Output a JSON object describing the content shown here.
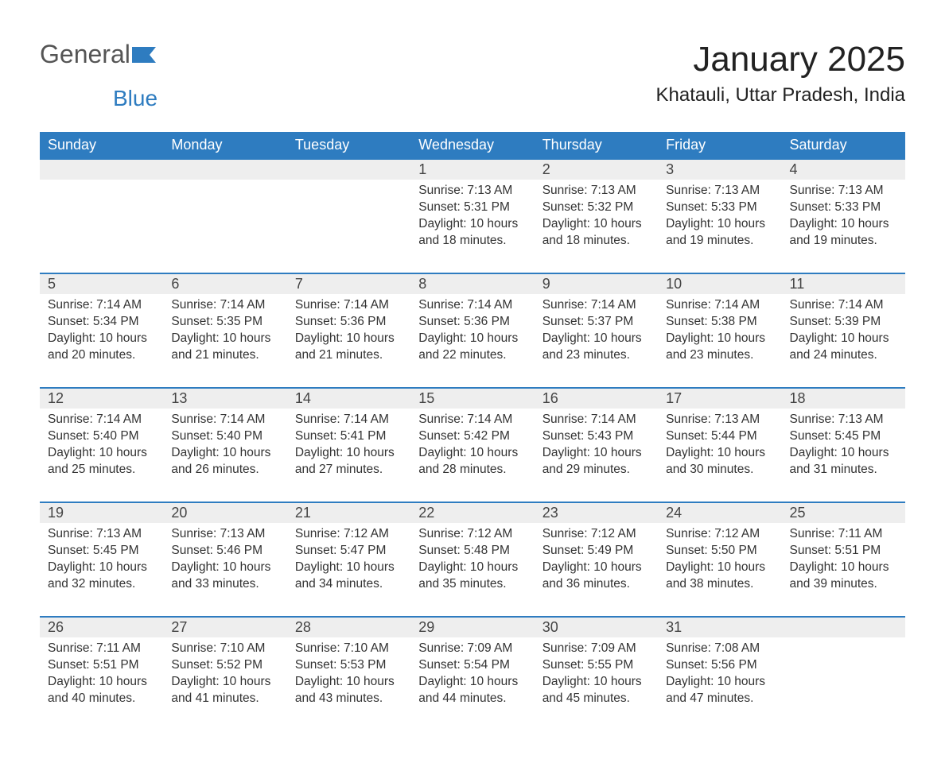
{
  "logo": {
    "text1": "General",
    "text2": "Blue"
  },
  "title": "January 2025",
  "location": "Khatauli, Uttar Pradesh, India",
  "colors": {
    "header_bg": "#2e7cc0",
    "header_text": "#ffffff",
    "daynum_bg": "#eeeeee",
    "border": "#2e7cc0",
    "body_text": "#333333",
    "page_bg": "#ffffff"
  },
  "weekdays": [
    "Sunday",
    "Monday",
    "Tuesday",
    "Wednesday",
    "Thursday",
    "Friday",
    "Saturday"
  ],
  "weeks": [
    [
      null,
      null,
      null,
      {
        "day": "1",
        "sunrise": "7:13 AM",
        "sunset": "5:31 PM",
        "daylight": "10 hours and 18 minutes."
      },
      {
        "day": "2",
        "sunrise": "7:13 AM",
        "sunset": "5:32 PM",
        "daylight": "10 hours and 18 minutes."
      },
      {
        "day": "3",
        "sunrise": "7:13 AM",
        "sunset": "5:33 PM",
        "daylight": "10 hours and 19 minutes."
      },
      {
        "day": "4",
        "sunrise": "7:13 AM",
        "sunset": "5:33 PM",
        "daylight": "10 hours and 19 minutes."
      }
    ],
    [
      {
        "day": "5",
        "sunrise": "7:14 AM",
        "sunset": "5:34 PM",
        "daylight": "10 hours and 20 minutes."
      },
      {
        "day": "6",
        "sunrise": "7:14 AM",
        "sunset": "5:35 PM",
        "daylight": "10 hours and 21 minutes."
      },
      {
        "day": "7",
        "sunrise": "7:14 AM",
        "sunset": "5:36 PM",
        "daylight": "10 hours and 21 minutes."
      },
      {
        "day": "8",
        "sunrise": "7:14 AM",
        "sunset": "5:36 PM",
        "daylight": "10 hours and 22 minutes."
      },
      {
        "day": "9",
        "sunrise": "7:14 AM",
        "sunset": "5:37 PM",
        "daylight": "10 hours and 23 minutes."
      },
      {
        "day": "10",
        "sunrise": "7:14 AM",
        "sunset": "5:38 PM",
        "daylight": "10 hours and 23 minutes."
      },
      {
        "day": "11",
        "sunrise": "7:14 AM",
        "sunset": "5:39 PM",
        "daylight": "10 hours and 24 minutes."
      }
    ],
    [
      {
        "day": "12",
        "sunrise": "7:14 AM",
        "sunset": "5:40 PM",
        "daylight": "10 hours and 25 minutes."
      },
      {
        "day": "13",
        "sunrise": "7:14 AM",
        "sunset": "5:40 PM",
        "daylight": "10 hours and 26 minutes."
      },
      {
        "day": "14",
        "sunrise": "7:14 AM",
        "sunset": "5:41 PM",
        "daylight": "10 hours and 27 minutes."
      },
      {
        "day": "15",
        "sunrise": "7:14 AM",
        "sunset": "5:42 PM",
        "daylight": "10 hours and 28 minutes."
      },
      {
        "day": "16",
        "sunrise": "7:14 AM",
        "sunset": "5:43 PM",
        "daylight": "10 hours and 29 minutes."
      },
      {
        "day": "17",
        "sunrise": "7:13 AM",
        "sunset": "5:44 PM",
        "daylight": "10 hours and 30 minutes."
      },
      {
        "day": "18",
        "sunrise": "7:13 AM",
        "sunset": "5:45 PM",
        "daylight": "10 hours and 31 minutes."
      }
    ],
    [
      {
        "day": "19",
        "sunrise": "7:13 AM",
        "sunset": "5:45 PM",
        "daylight": "10 hours and 32 minutes."
      },
      {
        "day": "20",
        "sunrise": "7:13 AM",
        "sunset": "5:46 PM",
        "daylight": "10 hours and 33 minutes."
      },
      {
        "day": "21",
        "sunrise": "7:12 AM",
        "sunset": "5:47 PM",
        "daylight": "10 hours and 34 minutes."
      },
      {
        "day": "22",
        "sunrise": "7:12 AM",
        "sunset": "5:48 PM",
        "daylight": "10 hours and 35 minutes."
      },
      {
        "day": "23",
        "sunrise": "7:12 AM",
        "sunset": "5:49 PM",
        "daylight": "10 hours and 36 minutes."
      },
      {
        "day": "24",
        "sunrise": "7:12 AM",
        "sunset": "5:50 PM",
        "daylight": "10 hours and 38 minutes."
      },
      {
        "day": "25",
        "sunrise": "7:11 AM",
        "sunset": "5:51 PM",
        "daylight": "10 hours and 39 minutes."
      }
    ],
    [
      {
        "day": "26",
        "sunrise": "7:11 AM",
        "sunset": "5:51 PM",
        "daylight": "10 hours and 40 minutes."
      },
      {
        "day": "27",
        "sunrise": "7:10 AM",
        "sunset": "5:52 PM",
        "daylight": "10 hours and 41 minutes."
      },
      {
        "day": "28",
        "sunrise": "7:10 AM",
        "sunset": "5:53 PM",
        "daylight": "10 hours and 43 minutes."
      },
      {
        "day": "29",
        "sunrise": "7:09 AM",
        "sunset": "5:54 PM",
        "daylight": "10 hours and 44 minutes."
      },
      {
        "day": "30",
        "sunrise": "7:09 AM",
        "sunset": "5:55 PM",
        "daylight": "10 hours and 45 minutes."
      },
      {
        "day": "31",
        "sunrise": "7:08 AM",
        "sunset": "5:56 PM",
        "daylight": "10 hours and 47 minutes."
      },
      null
    ]
  ],
  "labels": {
    "sunrise": "Sunrise: ",
    "sunset": "Sunset: ",
    "daylight": "Daylight: "
  }
}
